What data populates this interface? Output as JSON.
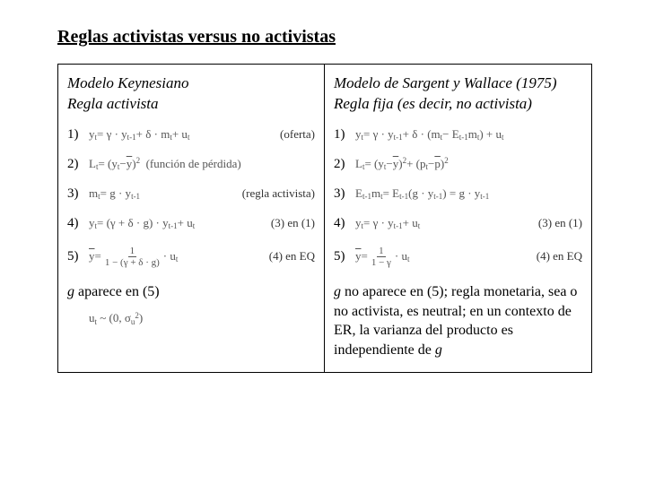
{
  "title": "Reglas activistas versus no activistas",
  "left": {
    "model_line1": "Modelo Keynesiano",
    "model_line2": "Regla activista",
    "rows": {
      "r1": {
        "num": "1)",
        "math": "y_t = γ · y_{t-1} + δ · m_t + u_t",
        "tag": "(oferta)"
      },
      "r2": {
        "num": "2)",
        "math": "L_t = (y_t − ȳ)²  (función de pérdida)"
      },
      "r3": {
        "num": "3)",
        "math": "m_t = g · y_{t-1}",
        "tag": "(regla activista)"
      },
      "r4": {
        "num": "4)",
        "math": "y_t = (γ + δ · g) · y_{t-1} + u_t",
        "tag": "(3) en (1)"
      },
      "r5": {
        "num": "5)",
        "math_prefix": "ȳ =",
        "frac_top": "1",
        "frac_bot": "1 − (γ + δ · g)",
        "math_suffix": "· u_t",
        "tag": "(4) en EQ"
      }
    },
    "conclusion_pre": "g",
    "conclusion": " aparece en (5)",
    "sigma": "u_t ~ (0, σ_u²)"
  },
  "right": {
    "model_line1": "Modelo de Sargent y Wallace (1975)",
    "model_line2": "Regla fija (es decir, no activista)",
    "rows": {
      "r1": {
        "num": "1)",
        "math": "y_t = γ · y_{t-1} + δ · (m_t − E_{t-1} m_t) + u_t"
      },
      "r2": {
        "num": "2)",
        "math": "L_t = (y_t − ȳ)² + (p_t − p̄)²"
      },
      "r3": {
        "num": "3)",
        "math": "E_{t-1} m_t = E_{t-1}(g · y_{t-1}) = g · y_{t-1}"
      },
      "r4": {
        "num": "4)",
        "math": "y_t = γ · y_{t-1} + u_t",
        "tag": "(3) en (1)"
      },
      "r5": {
        "num": "5)",
        "math_prefix": "ȳ =",
        "frac_top": "1",
        "frac_bot": "1 − γ",
        "math_suffix": "· u_t",
        "tag": "(4) en EQ"
      }
    },
    "conclusion_pre": "g",
    "conclusion": " no aparece en (5); regla monetaria, sea o no activista, es neutral; en un contexto de ER, la varianza del producto es independiente de ",
    "conclusion_post": "g"
  },
  "style": {
    "page_bg": "#ffffff",
    "text_color": "#000000",
    "math_color": "#555555",
    "title_fontsize": 20,
    "body_fontsize": 16,
    "row_fontsize": 15,
    "math_fontsize": 13
  }
}
